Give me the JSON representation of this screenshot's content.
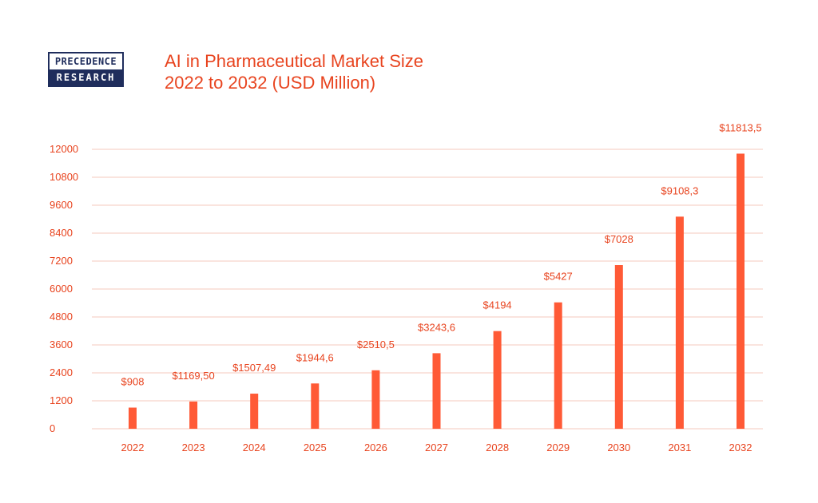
{
  "logo": {
    "line1": "PRECEDENCE",
    "line2": "RESEARCH"
  },
  "title_line1": "AI in Pharmaceutical Market Size",
  "title_line2": "2022 to 2032 (USD Million)",
  "colors": {
    "bar": "#ff5a36",
    "text": "#e8441f",
    "grid": "#f6c9bd",
    "logo": "#1f2d5c"
  },
  "chart_data": {
    "type": "bar",
    "title": "AI in Pharmaceutical Market Size 2022 to 2032 (USD Million)",
    "categories": [
      "2022",
      "2023",
      "2024",
      "2025",
      "2026",
      "2027",
      "2028",
      "2029",
      "2030",
      "2031",
      "2032"
    ],
    "values": [
      908,
      1169.5,
      1507.49,
      1944.6,
      2510.5,
      3243.6,
      4194,
      5427,
      7028,
      9108.3,
      11813.5
    ],
    "value_labels": [
      "$908",
      "$1169,50",
      "$1507,49",
      "$1944,6",
      "$2510,5",
      "$3243,6",
      "$4194",
      "$5427",
      "$7028",
      "$9108,3",
      "$11813,5"
    ],
    "yticks": [
      0,
      1200,
      2400,
      3600,
      4800,
      6000,
      7200,
      8400,
      9600,
      10800,
      12000
    ],
    "ylim": [
      0,
      12000
    ],
    "grid": true,
    "xlabel": "",
    "ylabel": ""
  }
}
